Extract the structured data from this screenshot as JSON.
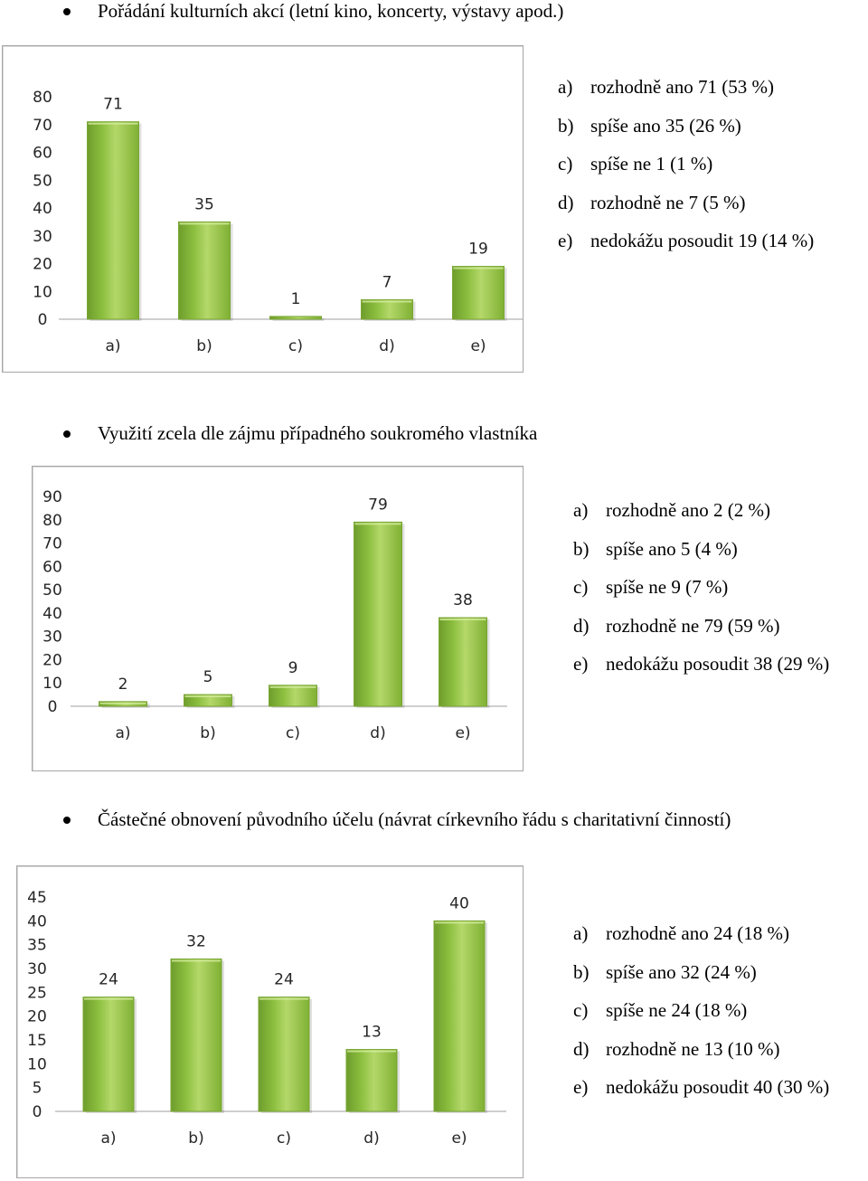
{
  "sections": [
    {
      "heading": "Pořádání kulturních akcí (letní kino, koncerty, výstavy apod.)",
      "legend": [
        {
          "letter": "a)",
          "text": "rozhodně ano 71 (53 %)"
        },
        {
          "letter": "b)",
          "text": "spíše ano 35 (26 %)"
        },
        {
          "letter": "c)",
          "text": "spíše ne 1 (1 %)"
        },
        {
          "letter": "d)",
          "text": "rozhodně ne 7 (5 %)"
        },
        {
          "letter": "e)",
          "text": "nedokážu posoudit 19 (14 %)"
        }
      ]
    },
    {
      "heading": "Využití zcela dle zájmu případného soukromého vlastníka",
      "legend": [
        {
          "letter": "a)",
          "text": "rozhodně ano 2 (2 %)"
        },
        {
          "letter": "b)",
          "text": "spíše ano 5 (4 %)"
        },
        {
          "letter": "c)",
          "text": "spíše ne 9 (7 %)"
        },
        {
          "letter": "d)",
          "text": "rozhodně ne 79 (59 %)"
        },
        {
          "letter": "e)",
          "text": "nedokážu posoudit 38 (29 %)"
        }
      ]
    },
    {
      "heading": "Částečné obnovení původního účelu (návrat církevního řádu s charitativní činností)",
      "legend": [
        {
          "letter": "a)",
          "text": "rozhodně ano 24 (18 %)"
        },
        {
          "letter": "b)",
          "text": "spíše ano 32 (24 %)"
        },
        {
          "letter": "c)",
          "text": "spíše ne 24 (18 %)"
        },
        {
          "letter": "d)",
          "text": "rozhodně ne 13 (10 %)"
        },
        {
          "letter": "e)",
          "text": "nedokážu posoudit 40 (30 %)"
        }
      ]
    }
  ],
  "chart_data": [
    {
      "type": "bar",
      "categories": [
        "a)",
        "b)",
        "c)",
        "d)",
        "e)"
      ],
      "values": [
        71,
        35,
        1,
        7,
        19
      ],
      "data_labels": [
        "71",
        "35",
        "1",
        "7",
        "19"
      ],
      "yticks": [
        0,
        10,
        20,
        30,
        40,
        50,
        60,
        70,
        80
      ],
      "ylim": [
        0,
        80
      ],
      "grid": false,
      "legend": "none",
      "bar_color": "#8cbf3f"
    },
    {
      "type": "bar",
      "categories": [
        "a)",
        "b)",
        "c)",
        "d)",
        "e)"
      ],
      "values": [
        2,
        5,
        9,
        79,
        38
      ],
      "data_labels": [
        "2",
        "5",
        "9",
        "79",
        "38"
      ],
      "yticks": [
        0,
        10,
        20,
        30,
        40,
        50,
        60,
        70,
        80,
        90
      ],
      "ylim": [
        0,
        90
      ],
      "grid": false,
      "legend": "none",
      "bar_color": "#8cbf3f"
    },
    {
      "type": "bar",
      "categories": [
        "a)",
        "b)",
        "c)",
        "d)",
        "e)"
      ],
      "values": [
        24,
        32,
        24,
        13,
        40
      ],
      "data_labels": [
        "24",
        "32",
        "24",
        "13",
        "40"
      ],
      "yticks": [
        0,
        5,
        10,
        15,
        20,
        25,
        30,
        35,
        40,
        45
      ],
      "ylim": [
        0,
        45
      ],
      "grid": false,
      "legend": "none",
      "bar_color": "#8cbf3f"
    }
  ]
}
